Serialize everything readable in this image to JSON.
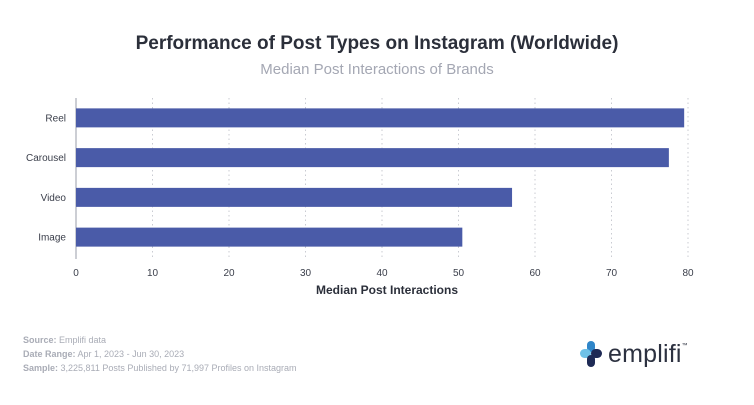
{
  "header": {
    "title": "Performance of Post Types on Instagram (Worldwide)",
    "subtitle": "Median Post Interactions of Brands"
  },
  "chart_data": {
    "type": "bar",
    "orientation": "horizontal",
    "categories": [
      "Reel",
      "Carousel",
      "Video",
      "Image"
    ],
    "values": [
      79.5,
      77.5,
      57,
      50.5
    ],
    "title": "Performance of Post Types on Instagram (Worldwide)",
    "subtitle": "Median Post Interactions of Brands",
    "xlabel": "Median Post Interactions",
    "ylabel": "",
    "xlim": [
      0,
      80
    ],
    "xticks": [
      "0",
      "10",
      "20",
      "30",
      "40",
      "50",
      "60",
      "70",
      "80"
    ],
    "grid": "vertical-dotted",
    "bar_color": "#4a5ba8"
  },
  "footer": {
    "source_label": "Source:",
    "source_value": "Emplifi data",
    "range_label": "Date Range:",
    "range_value": "Apr 1, 2023 - Jun 30, 2023",
    "sample_label": "Sample:",
    "sample_value": "3,225,811 Posts Published by 71,997 Profiles on Instagram"
  },
  "logo": {
    "text": "emplifi",
    "tm": "™",
    "colors": {
      "dark": "#1e2a55",
      "blue": "#2f86c9",
      "light": "#6fc1e8"
    }
  },
  "icons": {
    "logo": "emplifi-logo-icon"
  }
}
